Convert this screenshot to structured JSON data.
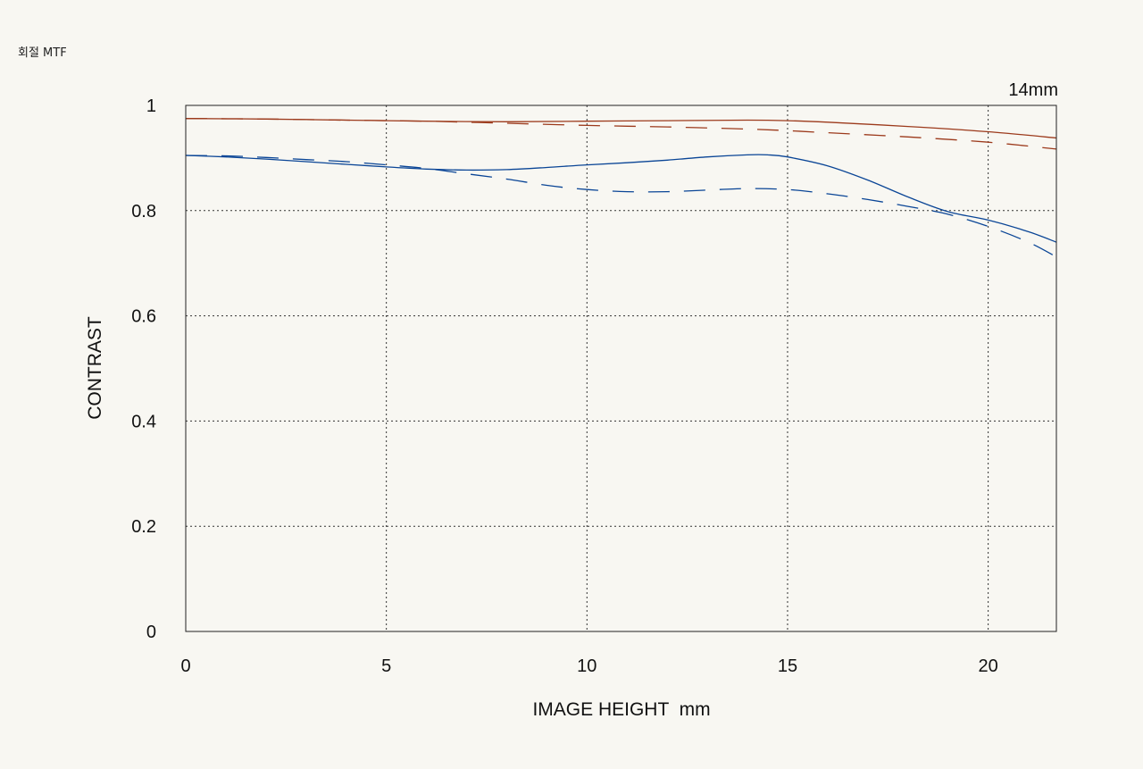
{
  "page_title": "회절 MTF",
  "chart_data": {
    "type": "line",
    "title": "14mm",
    "xlabel": "IMAGE HEIGHT  mm",
    "ylabel": "CONTRAST",
    "xlim": [
      0,
      21.7
    ],
    "ylim": [
      0,
      1
    ],
    "xticks": [
      0,
      5,
      10,
      15,
      20
    ],
    "yticks": [
      0,
      0.2,
      0.4,
      0.6,
      0.8,
      1
    ],
    "ytick_labels": [
      "0",
      "0.2",
      "0.4",
      "0.6",
      "0.8",
      "1"
    ],
    "grid": true,
    "legend": "none",
    "series": [
      {
        "style": "solid",
        "color": "#9c3a1c",
        "x": [
          0,
          2,
          4,
          6,
          8,
          10,
          12,
          14,
          15,
          16,
          18,
          20,
          21.7
        ],
        "y": [
          0.975,
          0.974,
          0.972,
          0.97,
          0.969,
          0.97,
          0.971,
          0.972,
          0.971,
          0.968,
          0.96,
          0.95,
          0.938
        ]
      },
      {
        "style": "dashed",
        "color": "#9c3a1c",
        "x": [
          0,
          2,
          4,
          6,
          7,
          8,
          10,
          12,
          14,
          15,
          16,
          18,
          20,
          21.7
        ],
        "y": [
          0.975,
          0.974,
          0.972,
          0.97,
          0.968,
          0.966,
          0.962,
          0.959,
          0.955,
          0.952,
          0.948,
          0.94,
          0.93,
          0.917
        ]
      },
      {
        "style": "solid",
        "color": "#0a4596",
        "x": [
          0,
          1,
          2,
          3,
          4,
          5,
          6,
          7,
          8,
          9,
          10,
          11,
          12,
          13,
          14,
          14.5,
          15,
          16,
          17,
          18,
          19,
          20,
          21,
          21.7
        ],
        "y": [
          0.905,
          0.902,
          0.898,
          0.893,
          0.888,
          0.883,
          0.879,
          0.877,
          0.878,
          0.882,
          0.887,
          0.891,
          0.896,
          0.902,
          0.906,
          0.906,
          0.902,
          0.885,
          0.858,
          0.826,
          0.798,
          0.782,
          0.76,
          0.74
        ]
      },
      {
        "style": "dashed",
        "color": "#0a4596",
        "x": [
          0,
          1,
          2,
          3,
          4,
          5,
          6,
          7,
          8,
          9,
          10,
          11,
          12,
          13,
          14,
          15,
          16,
          17,
          18,
          19,
          20,
          21,
          21.7
        ],
        "y": [
          0.905,
          0.904,
          0.901,
          0.897,
          0.893,
          0.887,
          0.88,
          0.87,
          0.86,
          0.848,
          0.84,
          0.836,
          0.836,
          0.839,
          0.842,
          0.84,
          0.832,
          0.821,
          0.808,
          0.793,
          0.77,
          0.74,
          0.712
        ]
      }
    ]
  }
}
